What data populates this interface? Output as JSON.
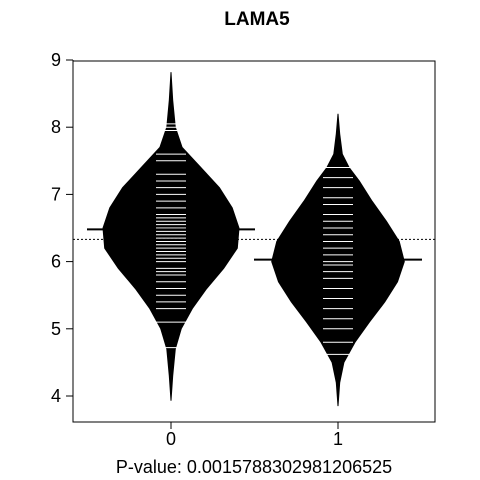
{
  "chart_data": {
    "type": "beanplot",
    "title": "LAMA5",
    "xlabel": "P-value: 0.0015788302981206525",
    "ylabel": "",
    "categories": [
      "0",
      "1"
    ],
    "ylim": [
      3.65,
      9.0
    ],
    "yticks": [
      4,
      5,
      6,
      7,
      8,
      9
    ],
    "overall_mean": 6.33,
    "groups": [
      {
        "name": "0",
        "mean": 6.48,
        "min": 3.93,
        "max": 8.82,
        "density": [
          [
            3.93,
            0.0
          ],
          [
            4.3,
            0.02
          ],
          [
            4.7,
            0.05
          ],
          [
            5.0,
            0.12
          ],
          [
            5.3,
            0.25
          ],
          [
            5.6,
            0.42
          ],
          [
            5.9,
            0.62
          ],
          [
            6.2,
            0.78
          ],
          [
            6.5,
            0.8
          ],
          [
            6.8,
            0.72
          ],
          [
            7.1,
            0.57
          ],
          [
            7.4,
            0.35
          ],
          [
            7.7,
            0.13
          ],
          [
            8.0,
            0.05
          ],
          [
            8.4,
            0.02
          ],
          [
            8.82,
            0.0
          ]
        ],
        "points": [
          4.72,
          5.1,
          5.3,
          5.4,
          5.5,
          5.6,
          5.7,
          5.8,
          5.85,
          5.9,
          6.0,
          6.05,
          6.1,
          6.15,
          6.2,
          6.25,
          6.3,
          6.35,
          6.4,
          6.45,
          6.5,
          6.55,
          6.6,
          6.65,
          6.7,
          6.8,
          6.9,
          7.0,
          7.1,
          7.2,
          7.3,
          7.5,
          7.6,
          7.95,
          8.0,
          8.05
        ]
      },
      {
        "name": "1",
        "mean": 6.03,
        "min": 3.85,
        "max": 8.2,
        "density": [
          [
            3.85,
            0.0
          ],
          [
            4.2,
            0.02
          ],
          [
            4.5,
            0.07
          ],
          [
            4.8,
            0.2
          ],
          [
            5.1,
            0.37
          ],
          [
            5.4,
            0.55
          ],
          [
            5.7,
            0.7
          ],
          [
            6.0,
            0.78
          ],
          [
            6.3,
            0.72
          ],
          [
            6.6,
            0.57
          ],
          [
            6.9,
            0.4
          ],
          [
            7.2,
            0.25
          ],
          [
            7.4,
            0.13
          ],
          [
            7.6,
            0.05
          ],
          [
            7.9,
            0.02
          ],
          [
            8.2,
            0.0
          ]
        ],
        "points": [
          4.62,
          4.8,
          5.0,
          5.15,
          5.3,
          5.45,
          5.6,
          5.75,
          5.85,
          5.95,
          6.0,
          6.1,
          6.2,
          6.3,
          6.4,
          6.5,
          6.6,
          6.7,
          6.85,
          6.95,
          7.1,
          7.25,
          7.4
        ]
      }
    ],
    "colors": {
      "bean": "#000000",
      "points": "#ffffff",
      "mean_line": "#000000"
    }
  }
}
